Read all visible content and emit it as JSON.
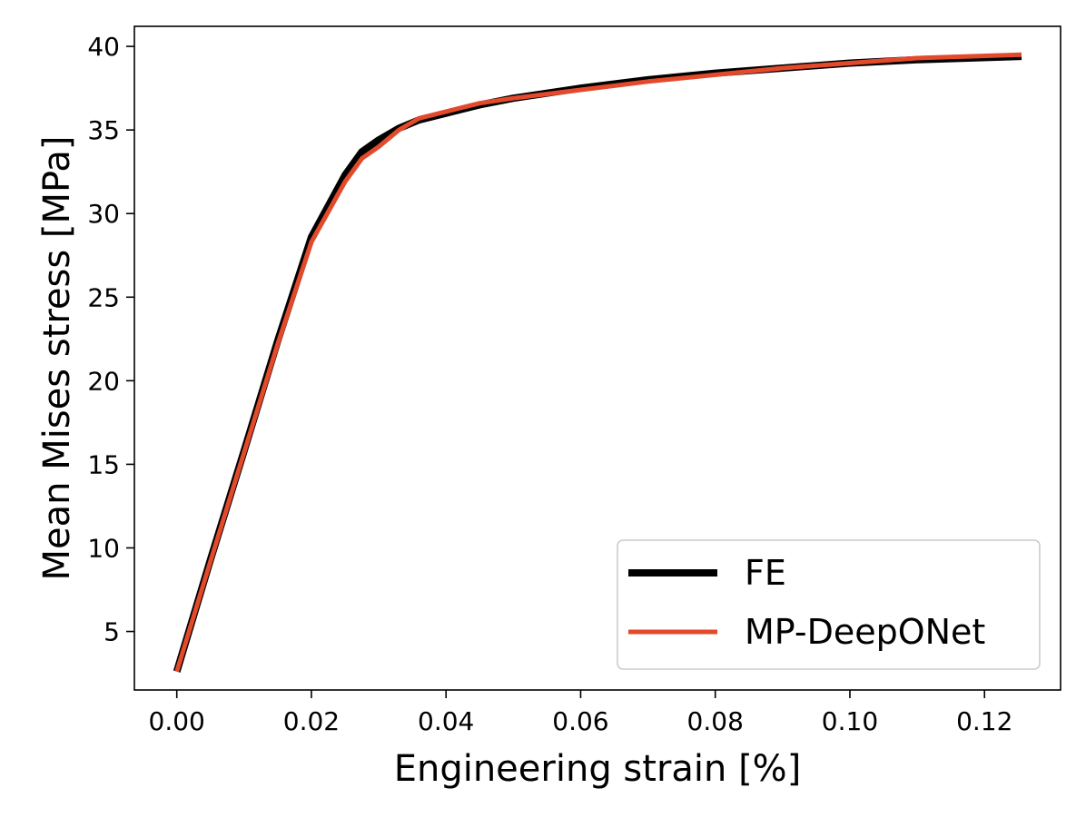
{
  "chart_data": {
    "type": "line",
    "title": "",
    "xlabel": "Engineering strain [%]",
    "ylabel": "Mean Mises stress [MPa]",
    "xlim": [
      -0.0063,
      0.1313
    ],
    "ylim": [
      1.5,
      41.2
    ],
    "xticks": [
      {
        "value": 0.0,
        "label": "0.00"
      },
      {
        "value": 0.02,
        "label": "0.02"
      },
      {
        "value": 0.04,
        "label": "0.04"
      },
      {
        "value": 0.06,
        "label": "0.06"
      },
      {
        "value": 0.08,
        "label": "0.08"
      },
      {
        "value": 0.1,
        "label": "0.10"
      },
      {
        "value": 0.12,
        "label": "0.12"
      }
    ],
    "yticks": [
      {
        "value": 5,
        "label": "5"
      },
      {
        "value": 10,
        "label": "10"
      },
      {
        "value": 15,
        "label": "15"
      },
      {
        "value": 20,
        "label": "20"
      },
      {
        "value": 25,
        "label": "25"
      },
      {
        "value": 30,
        "label": "30"
      },
      {
        "value": 35,
        "label": "35"
      },
      {
        "value": 40,
        "label": "40"
      }
    ],
    "grid": false,
    "legend_position": "lower-right",
    "series": [
      {
        "name": "FE",
        "color": "#000000",
        "x": [
          0.0,
          0.005,
          0.01,
          0.015,
          0.02,
          0.025,
          0.0275,
          0.03,
          0.033,
          0.036,
          0.04,
          0.045,
          0.05,
          0.06,
          0.07,
          0.08,
          0.09,
          0.1,
          0.11,
          0.1255
        ],
        "y": [
          2.6,
          9.3,
          15.8,
          22.4,
          28.6,
          32.3,
          33.7,
          34.4,
          35.1,
          35.6,
          36.0,
          36.5,
          36.9,
          37.5,
          38.0,
          38.4,
          38.7,
          39.0,
          39.2,
          39.4
        ]
      },
      {
        "name": "MP-DeepONet",
        "color": "#e24a2b",
        "x": [
          0.0,
          0.005,
          0.01,
          0.015,
          0.02,
          0.025,
          0.0275,
          0.03,
          0.033,
          0.036,
          0.04,
          0.045,
          0.05,
          0.06,
          0.07,
          0.08,
          0.09,
          0.1,
          0.11,
          0.1255
        ],
        "y": [
          2.6,
          9.2,
          15.7,
          22.2,
          28.3,
          31.9,
          33.3,
          34.0,
          35.0,
          35.7,
          36.1,
          36.6,
          36.9,
          37.4,
          37.9,
          38.3,
          38.7,
          39.0,
          39.3,
          39.5
        ]
      }
    ]
  }
}
